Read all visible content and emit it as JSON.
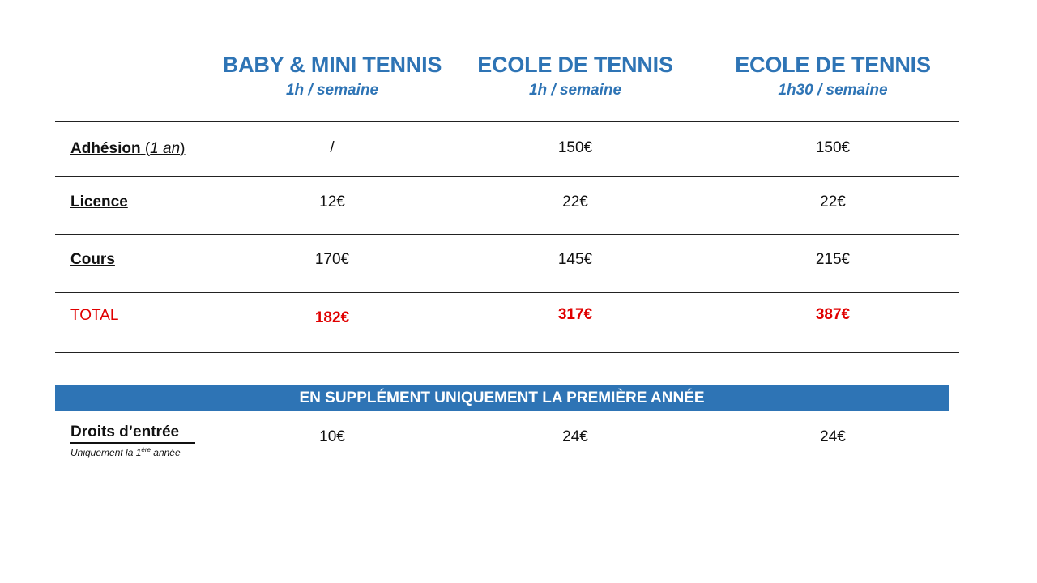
{
  "columns": [
    {
      "title": "BABY & MINI TENNIS",
      "subtitle": "1h / semaine"
    },
    {
      "title": "ECOLE DE TENNIS",
      "subtitle": "1h / semaine"
    },
    {
      "title": "ECOLE DE TENNIS",
      "subtitle": "1h30 / semaine"
    }
  ],
  "rows": {
    "adhesion": {
      "label": "Adhésion",
      "paren_open": " (",
      "note": "1 an",
      "paren_close": ")",
      "values": [
        "/",
        "150€",
        "150€"
      ]
    },
    "licence": {
      "label": "Licence",
      "values": [
        "12€",
        "22€",
        "22€"
      ]
    },
    "cours": {
      "label": "Cours",
      "values": [
        "170€",
        "145€",
        "215€"
      ]
    },
    "total": {
      "label": "TOTAL",
      "values": [
        "182€",
        "317€",
        "387€"
      ]
    }
  },
  "supplement": {
    "banner": "EN SUPPLÉMENT UNIQUEMENT LA PREMIÈRE ANNÉE",
    "label": "Droits d’entrée",
    "note_prefix": "Uniquement la 1",
    "note_sup": "ère",
    "note_suffix": " année",
    "values": [
      "10€",
      "24€",
      "24€"
    ]
  },
  "colors": {
    "accent": "#2E74B5",
    "total": "#E00000"
  }
}
